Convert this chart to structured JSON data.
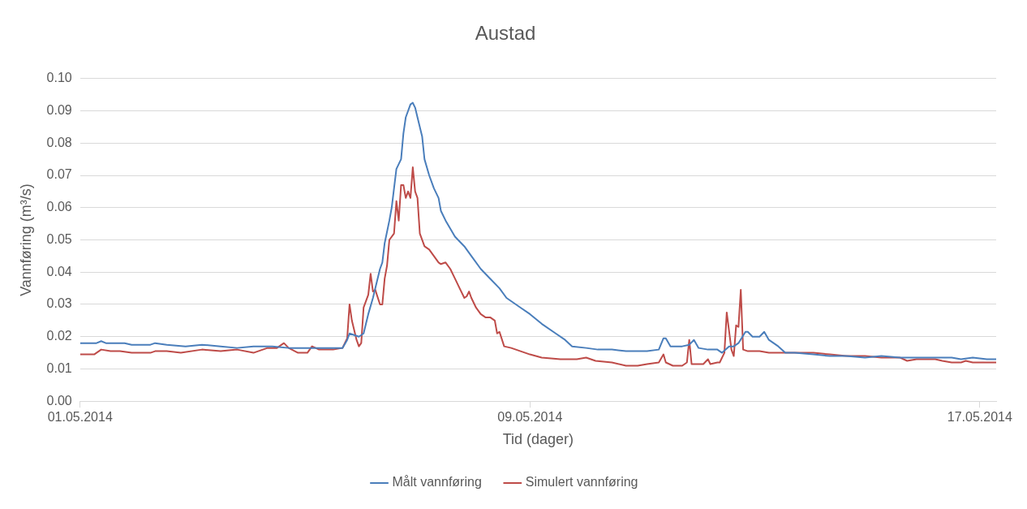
{
  "chart_data": {
    "type": "line",
    "title": "Austad",
    "xlabel": "Tid (dager)",
    "ylabel": "Vannføring (m³/s)",
    "xlim": [
      "2014-05-01T00:00",
      "2014-05-17T07:00"
    ],
    "xticks": [
      {
        "value": "2014-05-01",
        "label": "01.05.2014"
      },
      {
        "value": "2014-05-09",
        "label": "09.05.2014"
      },
      {
        "value": "2014-05-17",
        "label": "17.05.2014"
      }
    ],
    "ylim": [
      0,
      0.1
    ],
    "yticks": [
      {
        "value": 0,
        "label": "0.00"
      },
      0.01,
      0.02,
      0.03,
      0.04,
      0.05,
      0.06,
      0.07,
      0.08,
      0.09,
      {
        "value": 0.1,
        "label": "0.10"
      }
    ],
    "grid": "y",
    "legend": "bottom",
    "marker": "none",
    "line_style": "solid",
    "series": [
      {
        "name": "Målt vannføring",
        "color": "#4a7ebb",
        "x": [
          "2014-05-01T00:00",
          "2014-05-01T07:00",
          "2014-05-01T09:00",
          "2014-05-01T11:00",
          "2014-05-01T19:00",
          "2014-05-01T22:00",
          "2014-05-02T06:00",
          "2014-05-02T08:00",
          "2014-05-02T13:00",
          "2014-05-02T21:00",
          "2014-05-03T04:00",
          "2014-05-03T12:00",
          "2014-05-03T19:00",
          "2014-05-04T02:00",
          "2014-05-04T10:00",
          "2014-05-04T17:00",
          "2014-05-05T01:00",
          "2014-05-05T12:00",
          "2014-05-05T16:00",
          "2014-05-05T18:00",
          "2014-05-05T19:00",
          "2014-05-05T23:00",
          "2014-05-06T01:00",
          "2014-05-06T03:00",
          "2014-05-06T05:00",
          "2014-05-06T06:00",
          "2014-05-06T08:00",
          "2014-05-06T09:00",
          "2014-05-06T10:00",
          "2014-05-06T12:00",
          "2014-05-06T13:00",
          "2014-05-06T14:00",
          "2014-05-06T15:00",
          "2014-05-06T17:00",
          "2014-05-06T18:00",
          "2014-05-06T19:00",
          "2014-05-06T21:00",
          "2014-05-06T22:00",
          "2014-05-06T23:00",
          "2014-05-07T00:00",
          "2014-05-07T02:00",
          "2014-05-07T03:00",
          "2014-05-07T05:00",
          "2014-05-07T07:00",
          "2014-05-07T09:00",
          "2014-05-07T10:00",
          "2014-05-07T12:00",
          "2014-05-07T16:00",
          "2014-05-07T20:00",
          "2014-05-07T23:00",
          "2014-05-08T03:00",
          "2014-05-08T07:00",
          "2014-05-08T11:00",
          "2014-05-08T14:00",
          "2014-05-08T20:00",
          "2014-05-09T00:00",
          "2014-05-09T05:00",
          "2014-05-09T11:00",
          "2014-05-09T15:00",
          "2014-05-09T18:00",
          "2014-05-10T00:00",
          "2014-05-10T05:00",
          "2014-05-10T11:00",
          "2014-05-10T17:00",
          "2014-05-10T22:00",
          "2014-05-11T02:00",
          "2014-05-11T07:00",
          "2014-05-11T09:00",
          "2014-05-11T10:00",
          "2014-05-11T12:00",
          "2014-05-11T17:00",
          "2014-05-11T20:00",
          "2014-05-11T22:00",
          "2014-05-12T00:00",
          "2014-05-12T04:00",
          "2014-05-12T08:00",
          "2014-05-12T10:00",
          "2014-05-12T13:00",
          "2014-05-12T15:00",
          "2014-05-12T17:00",
          "2014-05-12T20:00",
          "2014-05-12T21:00",
          "2014-05-12T23:00",
          "2014-05-13T02:00",
          "2014-05-13T04:00",
          "2014-05-13T06:00",
          "2014-05-13T10:00",
          "2014-05-13T13:00",
          "2014-05-13T17:00",
          "2014-05-14T01:00",
          "2014-05-14T08:00",
          "2014-05-14T15:00",
          "2014-05-14T23:00",
          "2014-05-15T06:00",
          "2014-05-15T14:00",
          "2014-05-15T21:00",
          "2014-05-16T05:00",
          "2014-05-16T12:00",
          "2014-05-16T16:00",
          "2014-05-16T21:00",
          "2014-05-17T03:00",
          "2014-05-17T07:00"
        ],
        "values": [
          0.018,
          0.018,
          0.0186,
          0.018,
          0.018,
          0.0175,
          0.0175,
          0.018,
          0.0175,
          0.017,
          0.0175,
          0.017,
          0.0165,
          0.017,
          0.017,
          0.0165,
          0.0165,
          0.0165,
          0.0165,
          0.019,
          0.021,
          0.02,
          0.021,
          0.027,
          0.032,
          0.035,
          0.041,
          0.043,
          0.049,
          0.056,
          0.06,
          0.066,
          0.072,
          0.075,
          0.083,
          0.088,
          0.092,
          0.0925,
          0.091,
          0.088,
          0.082,
          0.075,
          0.07,
          0.066,
          0.063,
          0.059,
          0.056,
          0.051,
          0.048,
          0.045,
          0.041,
          0.038,
          0.035,
          0.032,
          0.029,
          0.027,
          0.024,
          0.021,
          0.019,
          0.017,
          0.0165,
          0.016,
          0.016,
          0.0155,
          0.0155,
          0.0155,
          0.016,
          0.0195,
          0.0195,
          0.017,
          0.017,
          0.0175,
          0.019,
          0.0165,
          0.016,
          0.016,
          0.015,
          0.017,
          0.017,
          0.018,
          0.0215,
          0.0215,
          0.02,
          0.02,
          0.0215,
          0.019,
          0.017,
          0.015,
          0.015,
          0.0145,
          0.014,
          0.014,
          0.0135,
          0.014,
          0.0135,
          0.0135,
          0.0135,
          0.0135,
          0.013,
          0.0135,
          0.013,
          0.013
        ]
      },
      {
        "name": "Simulert vannføring",
        "color": "#be4b48",
        "x": [
          "2014-05-01T00:00",
          "2014-05-01T06:00",
          "2014-05-01T09:00",
          "2014-05-01T13:00",
          "2014-05-01T17:00",
          "2014-05-01T22:00",
          "2014-05-02T06:00",
          "2014-05-02T08:00",
          "2014-05-02T13:00",
          "2014-05-02T19:00",
          "2014-05-03T04:00",
          "2014-05-03T12:00",
          "2014-05-03T19:00",
          "2014-05-04T02:00",
          "2014-05-04T08:00",
          "2014-05-04T12:00",
          "2014-05-04T15:00",
          "2014-05-04T17:00",
          "2014-05-04T21:00",
          "2014-05-05T01:00",
          "2014-05-05T03:00",
          "2014-05-05T06:00",
          "2014-05-05T12:00",
          "2014-05-05T16:00",
          "2014-05-05T18:00",
          "2014-05-05T19:00",
          "2014-05-05T20:00",
          "2014-05-05T22:00",
          "2014-05-05T23:00",
          "2014-05-06T00:00",
          "2014-05-06T01:00",
          "2014-05-06T03:00",
          "2014-05-06T04:00",
          "2014-05-06T05:00",
          "2014-05-06T06:00",
          "2014-05-06T08:00",
          "2014-05-06T09:00",
          "2014-05-06T10:00",
          "2014-05-06T11:00",
          "2014-05-06T12:00",
          "2014-05-06T14:00",
          "2014-05-06T15:00",
          "2014-05-06T16:00",
          "2014-05-06T17:00",
          "2014-05-06T18:00",
          "2014-05-06T19:00",
          "2014-05-06T20:00",
          "2014-05-06T21:00",
          "2014-05-06T22:00",
          "2014-05-06T23:00",
          "2014-05-07T00:00",
          "2014-05-07T01:00",
          "2014-05-07T03:00",
          "2014-05-07T05:00",
          "2014-05-07T07:00",
          "2014-05-07T09:00",
          "2014-05-07T10:00",
          "2014-05-07T12:00",
          "2014-05-07T14:00",
          "2014-05-07T16:00",
          "2014-05-07T18:00",
          "2014-05-07T20:00",
          "2014-05-07T21:00",
          "2014-05-07T22:00",
          "2014-05-07T23:00",
          "2014-05-08T01:00",
          "2014-05-08T03:00",
          "2014-05-08T05:00",
          "2014-05-08T07:00",
          "2014-05-08T09:00",
          "2014-05-08T10:00",
          "2014-05-08T11:00",
          "2014-05-08T13:00",
          "2014-05-08T16:00",
          "2014-05-08T20:00",
          "2014-05-09T00:00",
          "2014-05-09T05:00",
          "2014-05-09T13:00",
          "2014-05-09T20:00",
          "2014-05-10T00:00",
          "2014-05-10T04:00",
          "2014-05-10T11:00",
          "2014-05-10T17:00",
          "2014-05-10T22:00",
          "2014-05-11T02:00",
          "2014-05-11T07:00",
          "2014-05-11T09:00",
          "2014-05-11T10:00",
          "2014-05-11T13:00",
          "2014-05-11T17:00",
          "2014-05-11T19:00",
          "2014-05-11T20:00",
          "2014-05-11T21:00",
          "2014-05-12T02:00",
          "2014-05-12T04:00",
          "2014-05-12T05:00",
          "2014-05-12T08:00",
          "2014-05-12T09:00",
          "2014-05-12T11:00",
          "2014-05-12T12:00",
          "2014-05-12T14:00",
          "2014-05-12T15:00",
          "2014-05-12T16:00",
          "2014-05-12T17:00",
          "2014-05-12T18:00",
          "2014-05-12T19:00",
          "2014-05-12T21:00",
          "2014-05-13T02:00",
          "2014-05-13T06:00",
          "2014-05-13T13:00",
          "2014-05-13T17:00",
          "2014-05-14T01:00",
          "2014-05-14T08:00",
          "2014-05-14T15:00",
          "2014-05-14T23:00",
          "2014-05-15T06:00",
          "2014-05-15T14:00",
          "2014-05-15T17:00",
          "2014-05-15T21:00",
          "2014-05-16T05:00",
          "2014-05-16T08:00",
          "2014-05-16T12:00",
          "2014-05-16T16:00",
          "2014-05-16T18:00",
          "2014-05-16T21:00",
          "2014-05-17T07:00"
        ],
        "values": [
          0.0145,
          0.0145,
          0.016,
          0.0155,
          0.0155,
          0.015,
          0.015,
          0.0155,
          0.0155,
          0.015,
          0.016,
          0.0155,
          0.016,
          0.015,
          0.0165,
          0.0165,
          0.018,
          0.0165,
          0.015,
          0.015,
          0.017,
          0.016,
          0.016,
          0.0165,
          0.0195,
          0.03,
          0.025,
          0.019,
          0.017,
          0.018,
          0.029,
          0.033,
          0.0395,
          0.034,
          0.0345,
          0.03,
          0.03,
          0.038,
          0.042,
          0.05,
          0.052,
          0.062,
          0.056,
          0.067,
          0.067,
          0.063,
          0.065,
          0.063,
          0.0725,
          0.065,
          0.063,
          0.052,
          0.048,
          0.047,
          0.045,
          0.043,
          0.0425,
          0.043,
          0.041,
          0.038,
          0.035,
          0.032,
          0.0325,
          0.034,
          0.032,
          0.029,
          0.027,
          0.026,
          0.026,
          0.025,
          0.021,
          0.0215,
          0.017,
          0.0165,
          0.0155,
          0.0145,
          0.0135,
          0.013,
          0.013,
          0.0135,
          0.0125,
          0.012,
          0.011,
          0.011,
          0.0115,
          0.012,
          0.0145,
          0.012,
          0.011,
          0.011,
          0.012,
          0.019,
          0.0115,
          0.0115,
          0.013,
          0.0115,
          0.012,
          0.012,
          0.015,
          0.0275,
          0.016,
          0.014,
          0.0235,
          0.023,
          0.0345,
          0.016,
          0.0155,
          0.0155,
          0.015,
          0.015,
          0.015,
          0.015,
          0.0145,
          0.014,
          0.014,
          0.0135,
          0.0135,
          0.0125,
          0.013,
          0.013,
          0.0125,
          0.012,
          0.012,
          0.0125,
          0.012,
          0.012
        ]
      }
    ]
  }
}
